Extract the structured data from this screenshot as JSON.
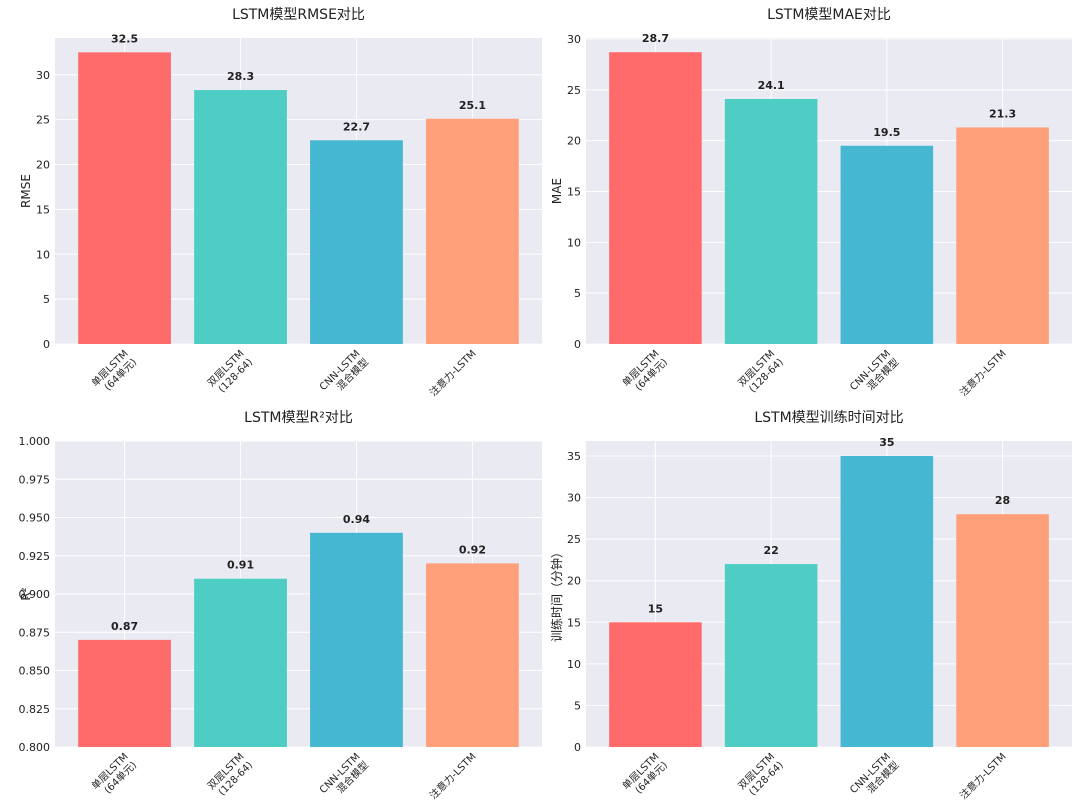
{
  "colors": [
    "#ff6b6b",
    "#4ecdc4",
    "#45b7d1",
    "#ffa07a"
  ],
  "chart_data": [
    {
      "type": "bar",
      "title": "LSTM模型RMSE对比",
      "ylabel": "RMSE",
      "xlabel": "",
      "categories": [
        "单层LSTM\n(64单元)",
        "双层LSTM\n(128-64)",
        "CNN-LSTM\n混合模型",
        "注意力-LSTM"
      ],
      "values": [
        32.5,
        28.3,
        22.7,
        25.1
      ],
      "value_labels": [
        "32.5",
        "28.3",
        "22.7",
        "25.1"
      ],
      "ylim": [
        0,
        34.1
      ],
      "yticks": [
        0,
        5,
        10,
        15,
        20,
        25,
        30
      ],
      "ytick_labels": [
        "0",
        "5",
        "10",
        "15",
        "20",
        "25",
        "30"
      ]
    },
    {
      "type": "bar",
      "title": "LSTM模型MAE对比",
      "ylabel": "MAE",
      "xlabel": "",
      "categories": [
        "单层LSTM\n(64单元)",
        "双层LSTM\n(128-64)",
        "CNN-LSTM\n混合模型",
        "注意力-LSTM"
      ],
      "values": [
        28.7,
        24.1,
        19.5,
        21.3
      ],
      "value_labels": [
        "28.7",
        "24.1",
        "19.5",
        "21.3"
      ],
      "ylim": [
        0,
        30.1
      ],
      "yticks": [
        0,
        5,
        10,
        15,
        20,
        25,
        30
      ],
      "ytick_labels": [
        "0",
        "5",
        "10",
        "15",
        "20",
        "25",
        "30"
      ]
    },
    {
      "type": "bar",
      "title": "LSTM模型R²对比",
      "ylabel": "R²",
      "xlabel": "",
      "categories": [
        "单层LSTM\n(64单元)",
        "双层LSTM\n(128-64)",
        "CNN-LSTM\n混合模型",
        "注意力-LSTM"
      ],
      "values": [
        0.87,
        0.91,
        0.94,
        0.92
      ],
      "value_labels": [
        "0.87",
        "0.91",
        "0.94",
        "0.92"
      ],
      "ylim": [
        0.8,
        1.0
      ],
      "yticks": [
        0.8,
        0.825,
        0.85,
        0.875,
        0.9,
        0.925,
        0.95,
        0.975,
        1.0
      ],
      "ytick_labels": [
        "0.800",
        "0.825",
        "0.850",
        "0.875",
        "0.900",
        "0.925",
        "0.950",
        "0.975",
        "1.000"
      ]
    },
    {
      "type": "bar",
      "title": "LSTM模型训练时间对比",
      "ylabel": "训练时间（分钟）",
      "xlabel": "",
      "categories": [
        "单层LSTM\n(64单元)",
        "双层LSTM\n(128-64)",
        "CNN-LSTM\n混合模型",
        "注意力-LSTM"
      ],
      "values": [
        15,
        22,
        35,
        28
      ],
      "value_labels": [
        "15",
        "22",
        "35",
        "28"
      ],
      "ylim": [
        0,
        36.8
      ],
      "yticks": [
        0,
        5,
        10,
        15,
        20,
        25,
        30,
        35
      ],
      "ytick_labels": [
        "0",
        "5",
        "10",
        "15",
        "20",
        "25",
        "30",
        "35"
      ]
    }
  ]
}
